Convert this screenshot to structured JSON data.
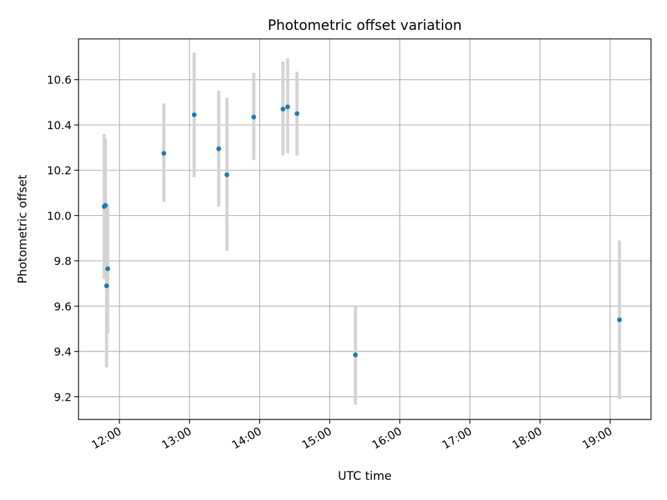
{
  "chart_data": {
    "type": "scatter",
    "title": "Photometric offset variation",
    "xlabel": "UTC time",
    "ylabel": "Photometric offset",
    "x_unit": "hours-of-day",
    "xlim": [
      "11:25",
      "19:35"
    ],
    "ylim": [
      9.1,
      10.78
    ],
    "x_ticks": [
      "12:00",
      "13:00",
      "14:00",
      "15:00",
      "16:00",
      "17:00",
      "18:00",
      "19:00"
    ],
    "y_ticks": [
      9.2,
      9.4,
      9.6,
      9.8,
      10.0,
      10.2,
      10.4,
      10.6
    ],
    "grid": true,
    "legend": "none",
    "point_color": "#1f77b4",
    "errorbar_color": "#d3d3d3",
    "points": [
      {
        "x": "11:47",
        "y": 10.04,
        "ylow": 9.72,
        "yhigh": 10.36
      },
      {
        "x": "11:48",
        "y": 10.045,
        "ylow": 9.75,
        "yhigh": 10.34
      },
      {
        "x": "11:49",
        "y": 9.69,
        "ylow": 9.33,
        "yhigh": 10.05
      },
      {
        "x": "11:50",
        "y": 9.765,
        "ylow": 9.48,
        "yhigh": 10.05
      },
      {
        "x": "12:38",
        "y": 10.275,
        "ylow": 10.06,
        "yhigh": 10.495
      },
      {
        "x": "13:04",
        "y": 10.445,
        "ylow": 10.17,
        "yhigh": 10.72
      },
      {
        "x": "13:25",
        "y": 10.295,
        "ylow": 10.04,
        "yhigh": 10.55
      },
      {
        "x": "13:32",
        "y": 10.18,
        "ylow": 9.845,
        "yhigh": 10.52
      },
      {
        "x": "13:55",
        "y": 10.435,
        "ylow": 10.245,
        "yhigh": 10.63
      },
      {
        "x": "14:20",
        "y": 10.47,
        "ylow": 10.265,
        "yhigh": 10.68
      },
      {
        "x": "14:24",
        "y": 10.48,
        "ylow": 10.275,
        "yhigh": 10.695
      },
      {
        "x": "14:32",
        "y": 10.45,
        "ylow": 10.265,
        "yhigh": 10.635
      },
      {
        "x": "15:22",
        "y": 9.385,
        "ylow": 9.165,
        "yhigh": 9.6
      },
      {
        "x": "19:08",
        "y": 9.54,
        "ylow": 9.19,
        "yhigh": 9.89
      }
    ]
  }
}
